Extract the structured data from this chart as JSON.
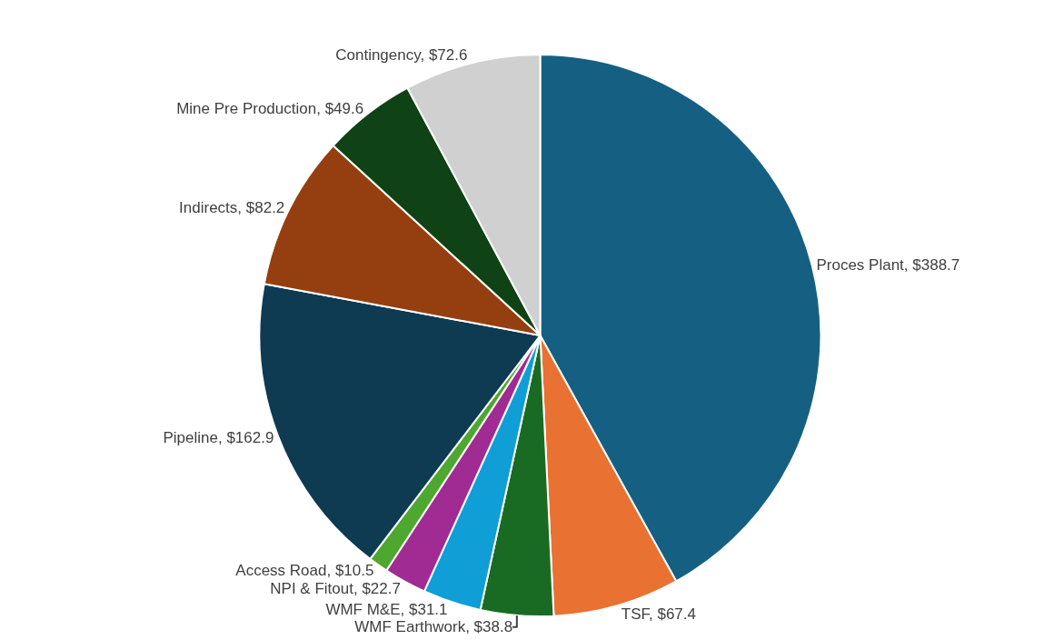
{
  "chart_data": {
    "type": "pie",
    "categories": [
      "Proces Plant",
      "TSF",
      "WMF Earthwork",
      "WMF M&E",
      "NPI & Fitout",
      "Access Road",
      "Pipeline",
      "Indirects",
      "Mine Pre Production",
      "Contingency"
    ],
    "values": [
      388.7,
      67.4,
      38.8,
      31.1,
      22.7,
      10.5,
      162.9,
      82.2,
      49.6,
      72.6
    ],
    "value_labels": [
      "$388.7",
      "$67.4",
      "$38.8",
      "$31.1",
      "$22.7",
      "$10.5",
      "$162.9",
      "$82.2",
      "$49.6",
      "$72.6"
    ],
    "colors": [
      "#156082",
      "#e97132",
      "#196b24",
      "#0f9ed5",
      "#a02b93",
      "#4ea72e",
      "#0e3a52",
      "#953f10",
      "#0f4215",
      "#d0d0d0"
    ],
    "legend": false
  }
}
